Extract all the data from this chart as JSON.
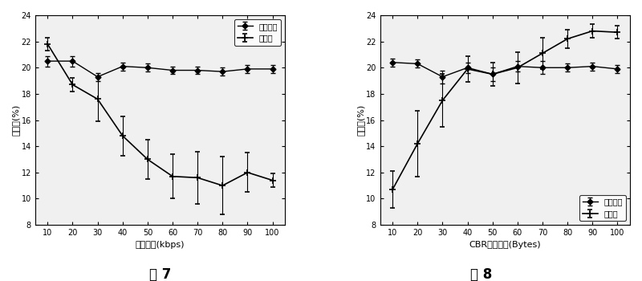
{
  "fig7": {
    "x": [
      10,
      20,
      30,
      40,
      50,
      60,
      70,
      80,
      90,
      100
    ],
    "line1_y": [
      20.5,
      20.5,
      19.3,
      20.1,
      20.0,
      19.8,
      19.8,
      19.7,
      19.9,
      19.9
    ],
    "line1_yerr": [
      0.4,
      0.4,
      0.3,
      0.3,
      0.3,
      0.3,
      0.3,
      0.3,
      0.3,
      0.3
    ],
    "line2_y": [
      21.8,
      18.7,
      17.6,
      14.8,
      13.0,
      11.7,
      11.6,
      11.0,
      12.0,
      11.4
    ],
    "line2_yerr": [
      0.5,
      0.5,
      1.7,
      1.5,
      1.5,
      1.7,
      2.0,
      2.2,
      1.5,
      0.5
    ],
    "xlabel": "业务负荷(kbps)",
    "ylabel": "重发率(%)",
    "title": "图 7",
    "ylim": [
      8,
      24
    ],
    "yticks": [
      8,
      10,
      12,
      14,
      16,
      18,
      20,
      22,
      24
    ],
    "legend1": "现有技术",
    "legend2": "本发明",
    "legend_loc": "upper right"
  },
  "fig8": {
    "x": [
      10,
      20,
      30,
      40,
      50,
      60,
      70,
      80,
      90,
      100
    ],
    "line1_y": [
      20.4,
      20.3,
      19.3,
      20.0,
      19.5,
      20.1,
      20.0,
      20.0,
      20.1,
      19.9
    ],
    "line1_yerr": [
      0.3,
      0.3,
      0.5,
      0.4,
      0.5,
      0.4,
      0.5,
      0.3,
      0.3,
      0.3
    ],
    "line2_y": [
      10.7,
      14.2,
      17.5,
      19.9,
      19.5,
      20.0,
      21.1,
      22.2,
      22.8,
      22.7
    ],
    "line2_yerr": [
      1.4,
      2.5,
      2.0,
      1.0,
      0.9,
      1.2,
      1.2,
      0.7,
      0.5,
      0.5
    ],
    "xlabel": "CBR包的大小(Bytes)",
    "ylabel": "重发率(%)",
    "title": "图 8",
    "ylim": [
      8,
      24
    ],
    "yticks": [
      8,
      10,
      12,
      14,
      16,
      18,
      20,
      22,
      24
    ],
    "legend1": "现有技术",
    "legend2": "本发明",
    "legend_loc": "lower right"
  },
  "line_color": "#000000",
  "bg_color": "#f0f0f0",
  "fig_title_fontsize": 12
}
